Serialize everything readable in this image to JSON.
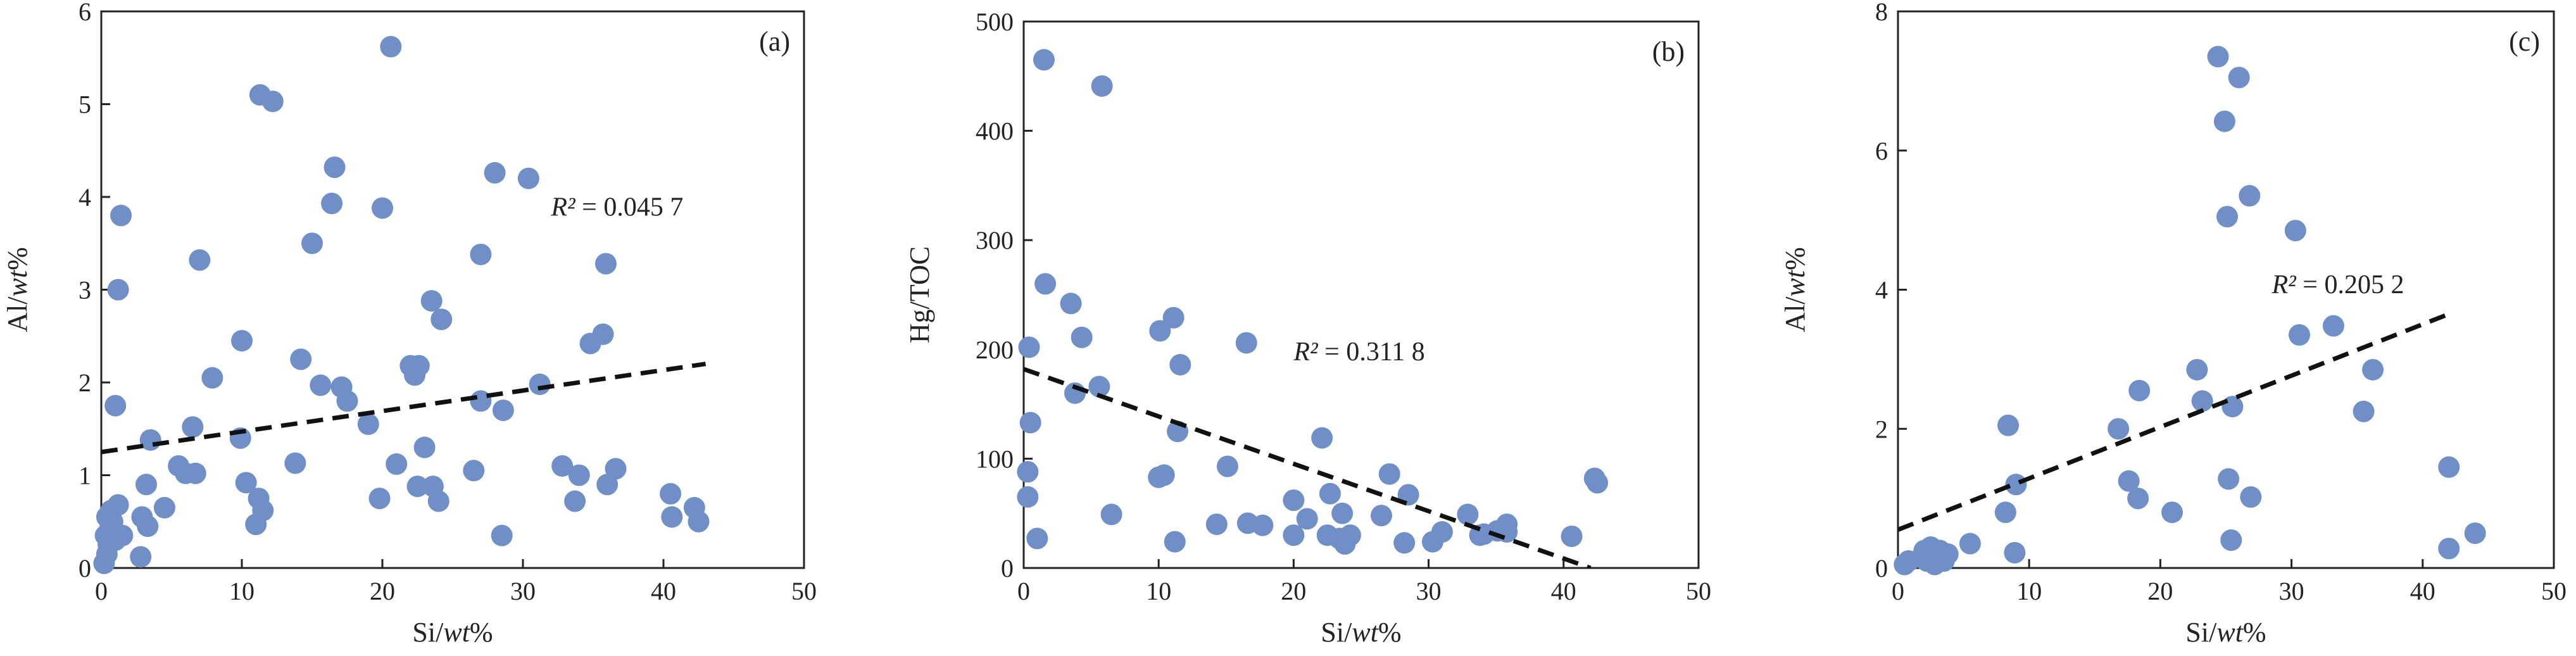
{
  "figure": {
    "background": "#ffffff"
  },
  "style": {
    "marker_color": "#6f8fc6",
    "axis_color": "#222222",
    "trend_color": "#111111"
  },
  "chart_data": [
    {
      "type": "scatter",
      "panel_label": "(a)",
      "xlabel": "Si/wt%",
      "xlabel_parts": [
        {
          "t": "Si/",
          "i": false
        },
        {
          "t": "wt",
          "i": true
        },
        {
          "t": "%",
          "i": false
        }
      ],
      "ylabel": "Al/wt%",
      "ylabel_parts": [
        {
          "t": "Al/",
          "i": false
        },
        {
          "t": "wt",
          "i": true
        },
        {
          "t": "%",
          "i": false
        }
      ],
      "xlim": [
        0,
        50
      ],
      "ylim": [
        0,
        6
      ],
      "xticks": [
        0,
        10,
        20,
        30,
        40,
        50
      ],
      "yticks": [
        0,
        1,
        2,
        3,
        4,
        5,
        6
      ],
      "r2_text": "R² = 0.045 7",
      "r2_value": 0.0457,
      "r2_anchor": [
        32,
        3.8
      ],
      "trendline": {
        "x": [
          0,
          43
        ],
        "y": [
          1.25,
          2.2
        ]
      },
      "points": [
        [
          0.2,
          0.05
        ],
        [
          0.4,
          0.15
        ],
        [
          0.5,
          0.25
        ],
        [
          0.3,
          0.35
        ],
        [
          0.6,
          0.42
        ],
        [
          0.8,
          0.5
        ],
        [
          0.4,
          0.55
        ],
        [
          0.7,
          0.62
        ],
        [
          1,
          0.3
        ],
        [
          1.5,
          0.35
        ],
        [
          1.2,
          0.68
        ],
        [
          1,
          1.75
        ],
        [
          1.2,
          3
        ],
        [
          1.4,
          3.8
        ],
        [
          2.8,
          0.12
        ],
        [
          2.9,
          0.55
        ],
        [
          3.3,
          0.45
        ],
        [
          3.2,
          0.9
        ],
        [
          3.5,
          1.38
        ],
        [
          4.5,
          0.65
        ],
        [
          5.5,
          1.1
        ],
        [
          6,
          1.02
        ],
        [
          6.5,
          1.52
        ],
        [
          6.7,
          1.02
        ],
        [
          7,
          3.32
        ],
        [
          7.9,
          2.05
        ],
        [
          9.9,
          1.4
        ],
        [
          10,
          2.45
        ],
        [
          10.3,
          0.92
        ],
        [
          11,
          0.47
        ],
        [
          11.2,
          0.75
        ],
        [
          11.5,
          0.62
        ],
        [
          11.3,
          5.1
        ],
        [
          12.2,
          5.03
        ],
        [
          13.8,
          1.13
        ],
        [
          14.2,
          2.25
        ],
        [
          15,
          3.5
        ],
        [
          15.6,
          1.97
        ],
        [
          16.4,
          3.93
        ],
        [
          16.6,
          4.32
        ],
        [
          17.1,
          1.95
        ],
        [
          17.5,
          1.8
        ],
        [
          19,
          1.55
        ],
        [
          19.8,
          0.75
        ],
        [
          20,
          3.88
        ],
        [
          20.6,
          5.62
        ],
        [
          21,
          1.12
        ],
        [
          22,
          2.18
        ],
        [
          22.3,
          2.08
        ],
        [
          22.5,
          0.88
        ],
        [
          22.6,
          2.18
        ],
        [
          23,
          1.3
        ],
        [
          23.5,
          2.88
        ],
        [
          23.6,
          0.88
        ],
        [
          24,
          0.72
        ],
        [
          24.2,
          2.68
        ],
        [
          26.5,
          1.05
        ],
        [
          27,
          3.38
        ],
        [
          27,
          1.8
        ],
        [
          28,
          4.26
        ],
        [
          28.5,
          0.35
        ],
        [
          28.6,
          1.7
        ],
        [
          30.4,
          4.2
        ],
        [
          31.2,
          1.98
        ],
        [
          32.8,
          1.1
        ],
        [
          33.7,
          0.72
        ],
        [
          34,
          1
        ],
        [
          34.8,
          2.42
        ],
        [
          35.7,
          2.52
        ],
        [
          35.9,
          3.28
        ],
        [
          36,
          0.9
        ],
        [
          36.6,
          1.07
        ],
        [
          40.5,
          0.8
        ],
        [
          40.6,
          0.55
        ],
        [
          42.2,
          0.65
        ],
        [
          42.5,
          0.5
        ]
      ]
    },
    {
      "type": "scatter",
      "panel_label": "(b)",
      "xlabel": "Si/wt%",
      "xlabel_parts": [
        {
          "t": "Si/",
          "i": false
        },
        {
          "t": "wt",
          "i": true
        },
        {
          "t": "%",
          "i": false
        }
      ],
      "ylabel": "Hg/TOC",
      "ylabel_parts": [
        {
          "t": "Hg/TOC",
          "i": false
        }
      ],
      "xlim": [
        0,
        50
      ],
      "ylim": [
        0,
        500
      ],
      "xticks": [
        0,
        10,
        20,
        30,
        40,
        50
      ],
      "yticks": [
        0,
        100,
        200,
        300,
        400,
        500
      ],
      "r2_text": "R² = 0.311 8",
      "r2_value": 0.3118,
      "r2_anchor": [
        20,
        190
      ],
      "trendline": {
        "x": [
          0,
          42
        ],
        "y": [
          182,
          0
        ]
      },
      "points": [
        [
          0.3,
          65
        ],
        [
          0.3,
          88
        ],
        [
          0.4,
          202
        ],
        [
          0.5,
          133
        ],
        [
          1,
          27
        ],
        [
          1.5,
          465
        ],
        [
          1.6,
          260
        ],
        [
          3.5,
          242
        ],
        [
          3.8,
          160
        ],
        [
          4.3,
          211
        ],
        [
          5.6,
          166
        ],
        [
          5.8,
          441
        ],
        [
          6.5,
          49
        ],
        [
          10,
          83
        ],
        [
          10.1,
          217
        ],
        [
          10.4,
          85
        ],
        [
          11.1,
          229
        ],
        [
          11.2,
          24
        ],
        [
          11.4,
          125
        ],
        [
          11.6,
          186
        ],
        [
          14.3,
          40
        ],
        [
          15.1,
          93
        ],
        [
          16.5,
          206
        ],
        [
          16.6,
          41
        ],
        [
          17.7,
          39
        ],
        [
          20,
          62
        ],
        [
          20,
          30
        ],
        [
          21,
          45
        ],
        [
          22.1,
          119
        ],
        [
          22.5,
          30
        ],
        [
          22.7,
          68
        ],
        [
          23.4,
          27
        ],
        [
          23.8,
          22
        ],
        [
          23.6,
          50
        ],
        [
          24.2,
          30
        ],
        [
          26.5,
          48
        ],
        [
          27.1,
          86
        ],
        [
          28.2,
          23
        ],
        [
          28.5,
          67
        ],
        [
          30.3,
          24
        ],
        [
          31,
          33
        ],
        [
          32.9,
          49
        ],
        [
          33.8,
          30
        ],
        [
          34.1,
          31
        ],
        [
          35.1,
          34
        ],
        [
          35.8,
          33
        ],
        [
          35.8,
          40
        ],
        [
          40.6,
          29
        ],
        [
          42.3,
          82
        ],
        [
          42.5,
          78
        ]
      ]
    },
    {
      "type": "scatter",
      "panel_label": "(c)",
      "xlabel": "Si/wt%",
      "xlabel_parts": [
        {
          "t": "Si/",
          "i": false
        },
        {
          "t": "wt",
          "i": true
        },
        {
          "t": "%",
          "i": false
        }
      ],
      "ylabel": "Al/wt%",
      "ylabel_parts": [
        {
          "t": "Al/",
          "i": false
        },
        {
          "t": "wt",
          "i": true
        },
        {
          "t": "%",
          "i": false
        }
      ],
      "xlim": [
        0,
        50
      ],
      "ylim": [
        0,
        8
      ],
      "xticks": [
        0,
        10,
        20,
        30,
        40,
        50
      ],
      "yticks": [
        0,
        2,
        4,
        6,
        8
      ],
      "r2_text": "R² = 0.205 2",
      "r2_value": 0.2052,
      "r2_anchor": [
        28.5,
        3.95
      ],
      "trendline": {
        "x": [
          0,
          42
        ],
        "y": [
          0.55,
          3.65
        ]
      },
      "points": [
        [
          0.5,
          0.05
        ],
        [
          0.8,
          0.1
        ],
        [
          1.8,
          0.15
        ],
        [
          2,
          0.25
        ],
        [
          2.2,
          0.1
        ],
        [
          2.5,
          0.3
        ],
        [
          2.8,
          0.05
        ],
        [
          3,
          0.2
        ],
        [
          3.2,
          0.25
        ],
        [
          3.5,
          0.1
        ],
        [
          3.8,
          0.2
        ],
        [
          5.5,
          0.35
        ],
        [
          8.2,
          0.8
        ],
        [
          8.4,
          2.05
        ],
        [
          8.9,
          0.22
        ],
        [
          9,
          1.2
        ],
        [
          16.8,
          2
        ],
        [
          17.6,
          1.25
        ],
        [
          18.3,
          1
        ],
        [
          18.4,
          2.55
        ],
        [
          20.9,
          0.8
        ],
        [
          22.8,
          2.85
        ],
        [
          23.2,
          2.4
        ],
        [
          24.4,
          7.35
        ],
        [
          24.9,
          6.42
        ],
        [
          25.1,
          5.05
        ],
        [
          25.2,
          1.28
        ],
        [
          25.4,
          0.4
        ],
        [
          25.5,
          2.32
        ],
        [
          26,
          7.05
        ],
        [
          26.8,
          5.35
        ],
        [
          26.9,
          1.02
        ],
        [
          30.3,
          4.85
        ],
        [
          30.6,
          3.35
        ],
        [
          33.2,
          3.48
        ],
        [
          35.5,
          2.25
        ],
        [
          36.2,
          2.85
        ],
        [
          42,
          1.45
        ],
        [
          42,
          0.28
        ],
        [
          44,
          0.5
        ]
      ]
    }
  ]
}
